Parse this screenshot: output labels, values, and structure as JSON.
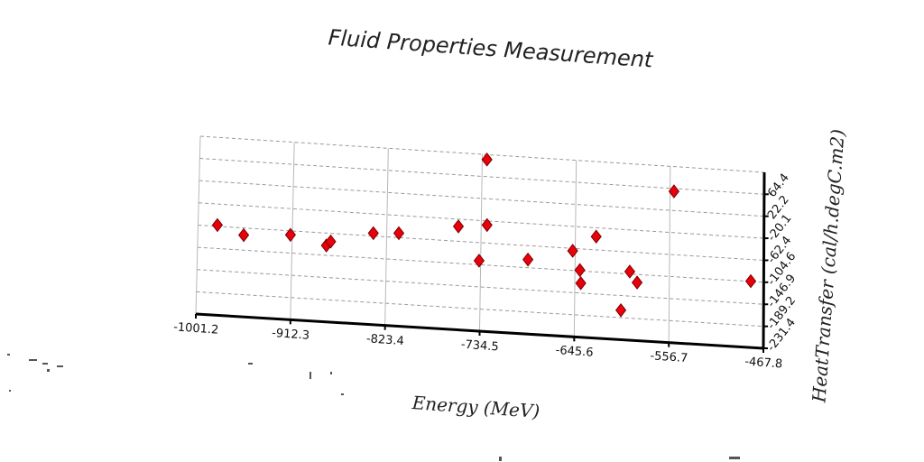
{
  "chart_data": {
    "type": "scatter",
    "title": "Fluid Properties Measurement",
    "xlabel": "Energy (MeV)",
    "ylabel": "HeatTransfer (cal/h.degC.m2)",
    "xlim": [
      -1001.2,
      -467.8
    ],
    "ylim": [
      -231.4,
      106.5
    ],
    "x_ticks": [
      "-1001.2",
      "-912.3",
      "-823.4",
      "-734.5",
      "-645.6",
      "-556.7",
      "-467.8"
    ],
    "y_ticks": [
      "-231.4",
      "-189.2",
      "-146.9",
      "-104.6",
      "-62.4",
      "-20.1",
      "22.2",
      "64.4"
    ],
    "grid": true,
    "marker": "diamond",
    "colors": {
      "marker_fill": "#e8000b",
      "marker_edge": "#7a0000"
    },
    "series": [
      {
        "points": [
          {
            "x": -983,
            "y": -60
          },
          {
            "x": -958,
            "y": -76
          },
          {
            "x": -914,
            "y": -70
          },
          {
            "x": -880,
            "y": -86
          },
          {
            "x": -876,
            "y": -78
          },
          {
            "x": -836,
            "y": -57
          },
          {
            "x": -812,
            "y": -54
          },
          {
            "x": -756,
            "y": -34
          },
          {
            "x": -729,
            "y": -28
          },
          {
            "x": -736,
            "y": -97
          },
          {
            "x": -730,
            "y": 97
          },
          {
            "x": -690,
            "y": -89
          },
          {
            "x": -648,
            "y": -67
          },
          {
            "x": -641,
            "y": -103
          },
          {
            "x": -640,
            "y": -128
          },
          {
            "x": -626,
            "y": -37
          },
          {
            "x": -602,
            "y": -175
          },
          {
            "x": -594,
            "y": -100
          },
          {
            "x": -587,
            "y": -120
          },
          {
            "x": -553,
            "y": 59
          },
          {
            "x": -480,
            "y": -104
          }
        ]
      }
    ]
  }
}
